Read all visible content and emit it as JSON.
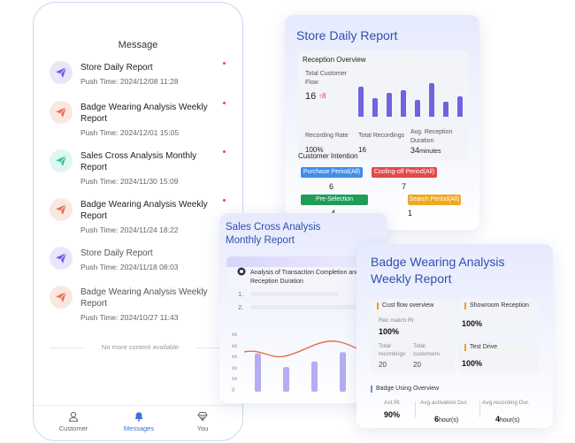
{
  "phone": {
    "title": "Message",
    "messages": [
      {
        "title": "Store Daily Report",
        "push": "Push Time: 2024/12/08  11:28",
        "icon": "send-icon",
        "color": "purple",
        "unread": true
      },
      {
        "title": "Badge Wearing Analysis Weekly Report",
        "push": "Push Time: 2024/12/01  15:05",
        "icon": "send-icon",
        "color": "orange",
        "unread": true
      },
      {
        "title": "Sales Cross Analysis Monthly Report",
        "push": "Push Time: 2024/11/30  15:09",
        "icon": "send-icon",
        "color": "teal",
        "unread": true
      },
      {
        "title": "Badge Wearing Analysis Weekly Report",
        "push": "Push Time: 2024/11/24  18:22",
        "icon": "send-icon",
        "color": "orange",
        "unread": true
      },
      {
        "title": "Store Daily Report",
        "push": "Push Time: 2024/11/18  08:03",
        "icon": "send-icon",
        "color": "purple",
        "unread": false
      },
      {
        "title": "Badge Wearing Analysis Weekly Report",
        "push": "Push Time: 2024/10/27  11:43",
        "icon": "send-icon",
        "color": "orange",
        "unread": false
      }
    ],
    "no_more": "No more content available",
    "tabs": [
      {
        "label": "Customer",
        "icon": "person-icon",
        "active": false
      },
      {
        "label": "Messages",
        "icon": "bell-icon",
        "active": true
      },
      {
        "label": "You",
        "icon": "diamond-icon",
        "active": false
      }
    ]
  },
  "store_report": {
    "title": "Store Daily Report",
    "section": "Reception Overview",
    "total_flow_label": "Total Customer Flow",
    "total_flow_value": "16",
    "total_flow_change": "8",
    "bar_levels": [
      0.9,
      0.55,
      0.7,
      0.8,
      0.5,
      1.0,
      0.45,
      0.6
    ],
    "recording_rate_label": "Recording Rate",
    "recording_rate_value": "100%",
    "total_recordings_label": "Total Recordings",
    "total_recordings_value": "16",
    "avg_duration_label": "Avg. Reception Duration",
    "avg_duration_value": "34",
    "avg_duration_unit": "minutes",
    "intention_title": "Customer Intention",
    "chips": [
      {
        "label": "Purchase Period(All)",
        "value": "6",
        "color": "#3f8ee8"
      },
      {
        "label": "Cooling-off Period(All)",
        "value": "7",
        "color": "#e24a4a"
      },
      {
        "label": "Pre-Selection Period(All)",
        "value": "4",
        "color": "#1f9e5a"
      },
      {
        "label": "Search Period(All)",
        "value": "1",
        "color": "#f0a820"
      }
    ]
  },
  "sales_report": {
    "title": "Sales Cross Analysis Monthly Report",
    "item_title": "Analysis of Transaction Completion and Reception Duration",
    "list_numbers": [
      "1.",
      "2."
    ],
    "y_ticks": [
      "xx",
      "xx",
      "xx",
      "xx",
      "xx",
      "0"
    ],
    "bar_levels": [
      0.7,
      0.45,
      0.55,
      0.72,
      0.68
    ]
  },
  "badge_report": {
    "title": "Badge Wearing Analysis Weekly Report",
    "cust_flow_title": "Cust flow overview",
    "rec_match_label": "Rec match Rt",
    "rec_match_value": "100%",
    "total_recordings_label": "Total recordings",
    "total_recordings_value": "20",
    "total_customers_label": "Total customers",
    "total_customers_value": "20",
    "showroom_title": "Showroom Reception",
    "showroom_value": "100%",
    "test_drive_title": "Test Drive",
    "test_drive_value": "100%",
    "badge_overview_title": "Badge Using Overview",
    "act_rt_label": "Act.Rt",
    "act_rt_value": "90%",
    "avg_act_label": "Avg.activation Dur.",
    "avg_act_value": "6",
    "avg_act_unit": "hour(s)",
    "avg_rec_label": "Avg.recording Dur.",
    "avg_rec_value": "4",
    "avg_rec_unit": "hour(s)"
  }
}
